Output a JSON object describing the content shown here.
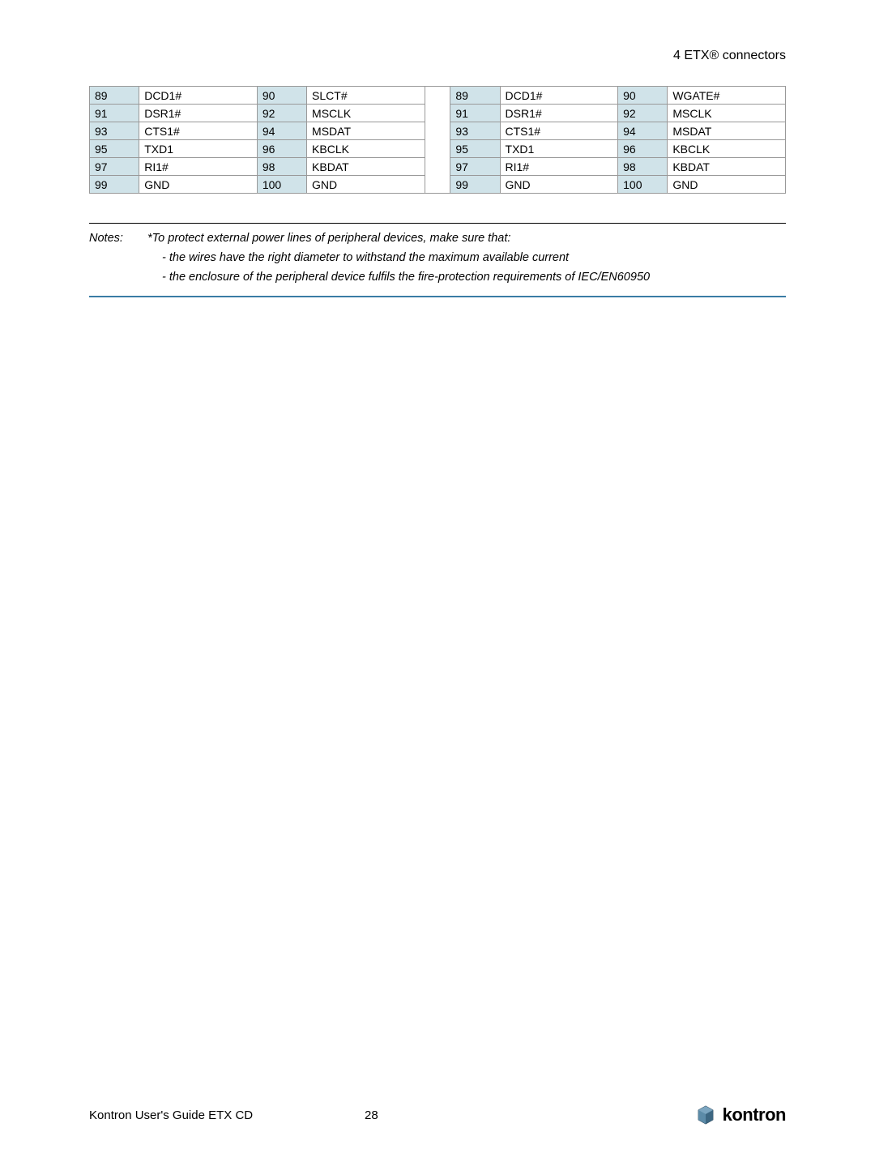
{
  "header": {
    "title": "4 ETX® connectors"
  },
  "table": {
    "rows": [
      {
        "a_num": "89",
        "a_sig": "DCD1#",
        "b_num": "90",
        "b_sig": "SLCT#",
        "c_num": "89",
        "c_sig": "DCD1#",
        "d_num": "90",
        "d_sig": "WGATE#"
      },
      {
        "a_num": "91",
        "a_sig": "DSR1#",
        "b_num": "92",
        "b_sig": "MSCLK",
        "c_num": "91",
        "c_sig": "DSR1#",
        "d_num": "92",
        "d_sig": "MSCLK"
      },
      {
        "a_num": "93",
        "a_sig": "CTS1#",
        "b_num": "94",
        "b_sig": "MSDAT",
        "c_num": "93",
        "c_sig": "CTS1#",
        "d_num": "94",
        "d_sig": "MSDAT"
      },
      {
        "a_num": "95",
        "a_sig": "TXD1",
        "b_num": "96",
        "b_sig": "KBCLK",
        "c_num": "95",
        "c_sig": "TXD1",
        "d_num": "96",
        "d_sig": "KBCLK"
      },
      {
        "a_num": "97",
        "a_sig": "RI1#",
        "b_num": "98",
        "b_sig": "KBDAT",
        "c_num": "97",
        "c_sig": "RI1#",
        "d_num": "98",
        "d_sig": "KBDAT"
      },
      {
        "a_num": "99",
        "a_sig": "GND",
        "b_num": "100",
        "b_sig": "GND",
        "c_num": "99",
        "c_sig": "GND",
        "d_num": "100",
        "d_sig": "GND"
      }
    ]
  },
  "notes": {
    "label": "Notes:",
    "line1": "*To protect external power lines of peripheral devices, make sure that:",
    "line2": "- the wires have the right diameter to withstand the maximum available current",
    "line3": "-  the enclosure of the peripheral device fulfils the fire-protection requirements of IEC/EN60950"
  },
  "footer": {
    "left": "Kontron User's Guide ETX CD",
    "page": "28",
    "logo_text": "kontron"
  },
  "colors": {
    "header_tint": "#d0e3e9",
    "border": "#999999",
    "rule_blue": "#3a7ca5",
    "logo_blue": "#5c8ba8"
  }
}
